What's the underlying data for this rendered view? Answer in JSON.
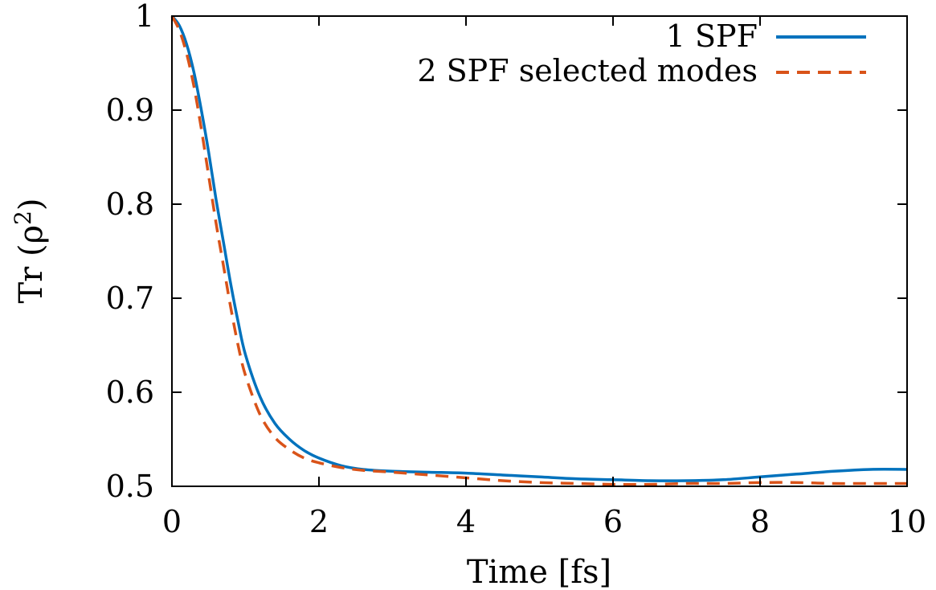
{
  "chart_data": {
    "type": "line",
    "title": "",
    "xlabel": "Time [fs]",
    "ylabel_main": "Tr (ρ",
    "ylabel_sup": "2",
    "ylabel_close": ")",
    "xlim": [
      0,
      10
    ],
    "ylim": [
      0.5,
      1.0
    ],
    "xticks": [
      0,
      2,
      4,
      6,
      8,
      10
    ],
    "yticks": [
      0.5,
      0.6,
      0.7,
      0.8,
      0.9,
      1.0
    ],
    "xtick_labels": [
      "0",
      "2",
      "4",
      "6",
      "8",
      "10"
    ],
    "ytick_labels": [
      "0.5",
      "0.6",
      "0.7",
      "0.8",
      "0.9",
      "1"
    ],
    "grid": false,
    "legend_position": "top-right",
    "series": [
      {
        "name": "1 SPF",
        "color": "#0072BD",
        "style": "solid",
        "x": [
          0,
          0.1,
          0.2,
          0.3,
          0.4,
          0.5,
          0.6,
          0.7,
          0.8,
          0.9,
          1.0,
          1.2,
          1.4,
          1.6,
          1.8,
          2.0,
          2.3,
          2.6,
          3.0,
          3.5,
          4.0,
          4.5,
          5.0,
          5.5,
          6.0,
          6.5,
          7.0,
          7.5,
          8.0,
          8.5,
          9.0,
          9.5,
          10.0
        ],
        "y": [
          1.0,
          0.99,
          0.97,
          0.94,
          0.9,
          0.855,
          0.805,
          0.76,
          0.715,
          0.675,
          0.64,
          0.595,
          0.567,
          0.55,
          0.538,
          0.53,
          0.522,
          0.518,
          0.516,
          0.515,
          0.514,
          0.512,
          0.51,
          0.508,
          0.507,
          0.506,
          0.506,
          0.507,
          0.51,
          0.513,
          0.516,
          0.518,
          0.518
        ]
      },
      {
        "name": "2 SPF selected modes",
        "color": "#D95319",
        "style": "dashed",
        "x": [
          0,
          0.1,
          0.2,
          0.3,
          0.4,
          0.5,
          0.6,
          0.7,
          0.8,
          0.9,
          1.0,
          1.2,
          1.4,
          1.6,
          1.8,
          2.0,
          2.3,
          2.6,
          3.0,
          3.5,
          4.0,
          4.5,
          5.0,
          5.5,
          6.0,
          6.5,
          7.0,
          7.5,
          8.0,
          8.5,
          9.0,
          9.5,
          10.0
        ],
        "y": [
          1.0,
          0.985,
          0.96,
          0.925,
          0.88,
          0.83,
          0.78,
          0.735,
          0.69,
          0.65,
          0.618,
          0.576,
          0.552,
          0.539,
          0.53,
          0.525,
          0.52,
          0.517,
          0.515,
          0.512,
          0.509,
          0.506,
          0.504,
          0.503,
          0.502,
          0.502,
          0.503,
          0.503,
          0.504,
          0.504,
          0.503,
          0.503,
          0.503
        ]
      }
    ]
  }
}
